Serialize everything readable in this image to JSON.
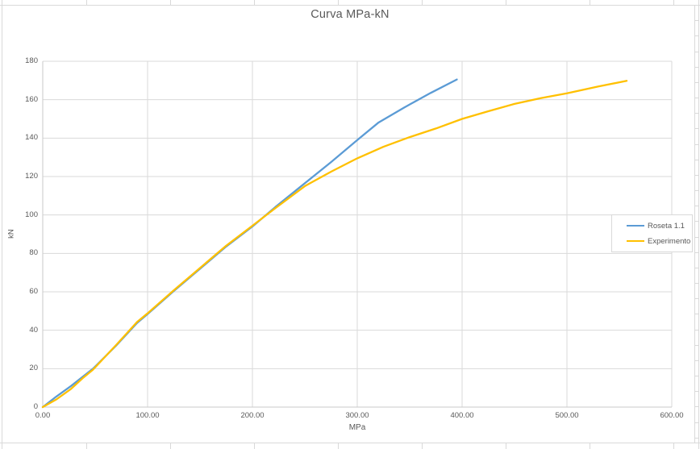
{
  "sheet": {
    "grid_color": "#d9d9d9"
  },
  "chart_data": {
    "type": "line",
    "title": "Curva MPa-kN",
    "xlabel": "MPa",
    "ylabel": "kN",
    "xlim": [
      0,
      600
    ],
    "ylim": [
      0,
      180
    ],
    "grid": true,
    "legend_position": "right",
    "x_tick_values": [
      0,
      100,
      200,
      300,
      400,
      500,
      600
    ],
    "x_tick_labels": [
      "0.00",
      "100.00",
      "200.00",
      "300.00",
      "400.00",
      "500.00",
      "600.00"
    ],
    "y_tick_values": [
      0,
      20,
      40,
      60,
      80,
      100,
      120,
      140,
      160,
      180
    ],
    "y_tick_labels": [
      "0",
      "20",
      "40",
      "60",
      "80",
      "100",
      "120",
      "140",
      "160",
      "180"
    ],
    "colors": {
      "gridline": "#dadada",
      "axis_line": "#c9c9c9",
      "text": "#595959"
    },
    "series": [
      {
        "name": "Roseta 1.1",
        "color": "#5B9BD5",
        "points": [
          [
            0,
            0
          ],
          [
            13,
            5.5
          ],
          [
            27,
            11
          ],
          [
            48,
            20
          ],
          [
            70,
            32
          ],
          [
            90,
            43.8
          ],
          [
            100,
            48.4
          ],
          [
            125,
            60.4
          ],
          [
            153,
            73.4
          ],
          [
            175,
            83.6
          ],
          [
            200,
            94
          ],
          [
            222,
            104.2
          ],
          [
            250,
            116.5
          ],
          [
            275,
            127.5
          ],
          [
            300,
            139
          ],
          [
            320,
            148
          ],
          [
            345,
            156
          ],
          [
            370,
            163.5
          ],
          [
            395,
            170.5
          ]
        ]
      },
      {
        "name": "Experimento",
        "color": "#FFC000",
        "points": [
          [
            0,
            0
          ],
          [
            13,
            4
          ],
          [
            27,
            9.5
          ],
          [
            38,
            15
          ],
          [
            48,
            19.5
          ],
          [
            70,
            32.3
          ],
          [
            90,
            44.3
          ],
          [
            100,
            48.8
          ],
          [
            125,
            60.8
          ],
          [
            153,
            73.8
          ],
          [
            175,
            84
          ],
          [
            200,
            94.4
          ],
          [
            222,
            103.6
          ],
          [
            250,
            115
          ],
          [
            275,
            122.5
          ],
          [
            300,
            129.5
          ],
          [
            325,
            135.5
          ],
          [
            350,
            140.5
          ],
          [
            375,
            145
          ],
          [
            400,
            150
          ],
          [
            425,
            154
          ],
          [
            450,
            157.8
          ],
          [
            475,
            160.8
          ],
          [
            500,
            163.3
          ],
          [
            530,
            166.9
          ],
          [
            557,
            169.8
          ]
        ]
      }
    ]
  },
  "legend": {
    "items": [
      {
        "label": "Roseta 1.1"
      },
      {
        "label": "Experimento"
      }
    ]
  }
}
